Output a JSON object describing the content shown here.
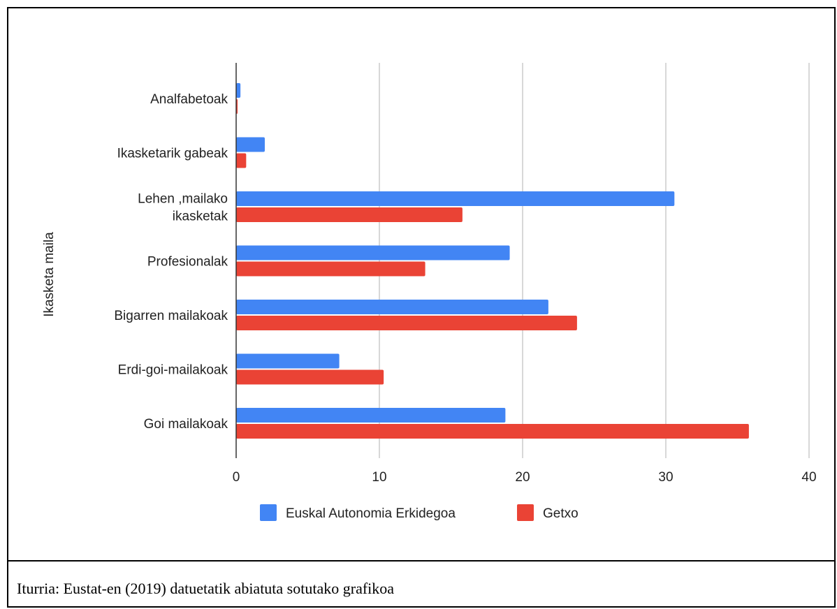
{
  "chart_data": {
    "type": "bar",
    "orientation": "horizontal",
    "categories": [
      [
        "Analfabetoak"
      ],
      [
        "Ikasketarik gabeak"
      ],
      [
        "Lehen ,mailako",
        "ikasketak"
      ],
      [
        "Profesionalak"
      ],
      [
        "Bigarren mailakoak"
      ],
      [
        "Erdi-goi-mailakoak"
      ],
      [
        "Goi mailakoak"
      ]
    ],
    "series": [
      {
        "name": "Euskal Autonomia Erkidegoa",
        "color": "#4285f4",
        "values": [
          0.3,
          2.0,
          30.6,
          19.1,
          21.8,
          7.2,
          18.8
        ]
      },
      {
        "name": "Getxo",
        "color": "#ea4335",
        "values": [
          0.1,
          0.7,
          15.8,
          13.2,
          23.8,
          10.3,
          35.8
        ]
      }
    ],
    "xlim": [
      0,
      40
    ],
    "xticks": [
      0,
      10,
      20,
      30,
      40
    ],
    "xlabel": "",
    "ylabel": "Ikasketa maila",
    "grid": true,
    "legend_position": "bottom"
  },
  "source_note": "Iturria: Eustat-en (2019) datuetatik abiatuta sotutako grafikoa"
}
